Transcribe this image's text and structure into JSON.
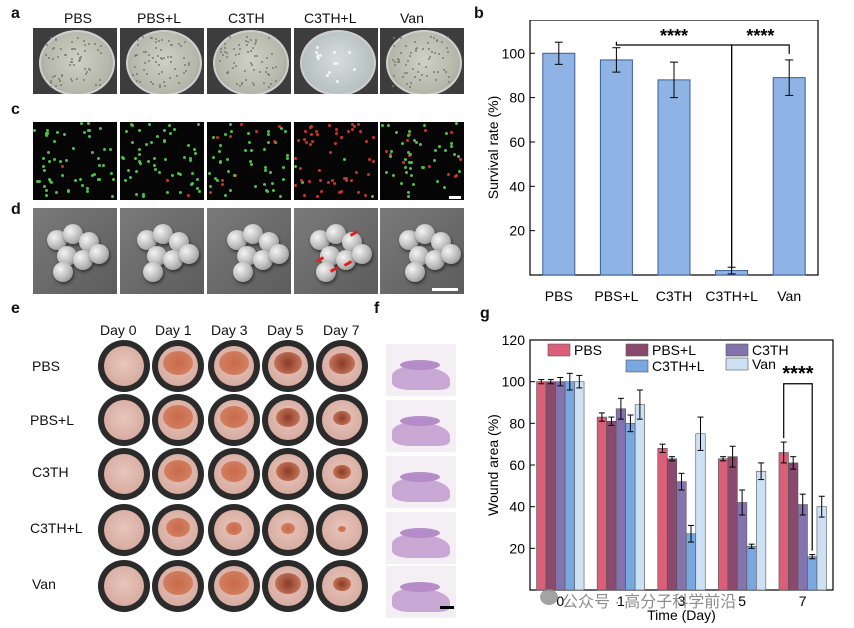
{
  "panel_letters": {
    "a": "a",
    "b": "b",
    "c": "c",
    "d": "d",
    "e": "e",
    "f": "f",
    "g": "g"
  },
  "groups": [
    "PBS",
    "PBS+L",
    "C3TH",
    "C3TH+L",
    "Van"
  ],
  "days": [
    "Day 0",
    "Day 1",
    "Day 3",
    "Day 5",
    "Day 7"
  ],
  "watermark": "公众号 · 高分子科学前沿",
  "chart_data": [
    {
      "type": "bar",
      "panel": "b",
      "categories": [
        "PBS",
        "PBS+L",
        "C3TH",
        "C3TH+L",
        "Van"
      ],
      "values": [
        100,
        97,
        88,
        2,
        89
      ],
      "errors": [
        5,
        5.5,
        8,
        1.5,
        8
      ],
      "ylabel": "Survival rate (%)",
      "xlabel": "",
      "ylim": [
        0,
        115
      ],
      "yticks": [
        "20",
        "40",
        "60",
        "80",
        "100"
      ],
      "significance": [
        {
          "from": "PBS+L",
          "to": "C3TH+L",
          "label": "****"
        },
        {
          "from": "C3TH+L",
          "to": "Van",
          "label": "****"
        }
      ],
      "color": "#8fb3e4"
    },
    {
      "type": "bar",
      "panel": "g",
      "categories": [
        "0",
        "1",
        "3",
        "5",
        "7"
      ],
      "series": [
        {
          "name": "PBS",
          "values": [
            100,
            83,
            68,
            63,
            66
          ],
          "errors": [
            1,
            2,
            2,
            1,
            5
          ],
          "color": "#db5f79"
        },
        {
          "name": "PBS+L",
          "values": [
            100,
            81,
            63,
            64,
            61
          ],
          "errors": [
            1,
            2,
            1,
            5,
            3
          ],
          "color": "#8a4a6d"
        },
        {
          "name": "C3TH",
          "values": [
            100,
            87,
            52,
            42,
            41
          ],
          "errors": [
            2,
            5,
            4,
            6,
            5
          ],
          "color": "#8474ad"
        },
        {
          "name": "C3TH+L",
          "values": [
            100,
            80,
            27,
            21,
            16
          ],
          "errors": [
            4,
            4,
            4,
            1,
            1
          ],
          "color": "#79a7df"
        },
        {
          "name": "Van",
          "values": [
            100,
            89,
            75,
            57,
            40
          ],
          "errors": [
            3,
            7,
            8,
            4,
            5
          ],
          "color": "#cde0f4"
        }
      ],
      "xlabel": "Time (Day)",
      "ylabel": "Wound area (%)",
      "ylim": [
        0,
        120
      ],
      "yticks": [
        "20",
        "40",
        "60",
        "80",
        "100",
        "120"
      ],
      "significance": [
        {
          "from": "PBS",
          "to": "C3TH+L",
          "at": "7",
          "label": "****"
        }
      ]
    }
  ]
}
